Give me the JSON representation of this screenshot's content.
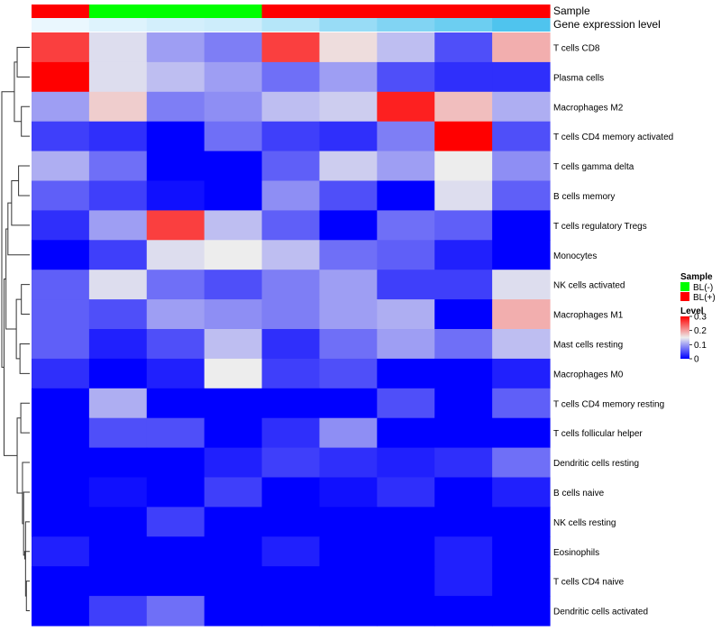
{
  "chart_data": {
    "type": "heatmap",
    "title": "",
    "annotation_labels": {
      "sample": "Sample",
      "expression": "Gene expression level"
    },
    "sample_groups": [
      "BL(+)",
      "BL(-)",
      "BL(-)",
      "BL(-)",
      "BL(+)",
      "BL(+)",
      "BL(+)",
      "BL(+)",
      "BL(+)"
    ],
    "expression_levels": [
      0.02,
      0.06,
      0.1,
      0.12,
      0.2,
      0.3,
      0.38,
      0.45,
      0.55
    ],
    "rows": [
      "T cells CD8",
      "Plasma cells",
      "Macrophages M2",
      "T cells CD4 memory activated",
      "T cells gamma delta",
      "B cells memory",
      "T cells regulatory  Tregs",
      "Monocytes",
      "NK cells activated",
      "Macrophages M1",
      "Mast cells resting",
      "Macrophages M0",
      "T cells CD4 memory resting",
      "T cells follicular helper",
      "Dendritic cells resting",
      "B cells naive",
      "NK cells resting",
      "Eosinophils",
      "T cells CD4 naive",
      "Dendritic cells activated"
    ],
    "values": [
      [
        0.26,
        0.14,
        0.1,
        0.08,
        0.26,
        0.16,
        0.12,
        0.05,
        0.19
      ],
      [
        0.3,
        0.14,
        0.12,
        0.1,
        0.07,
        0.1,
        0.05,
        0.03,
        0.03
      ],
      [
        0.1,
        0.17,
        0.08,
        0.09,
        0.12,
        0.13,
        0.28,
        0.18,
        0.11
      ],
      [
        0.04,
        0.03,
        0.0,
        0.07,
        0.04,
        0.03,
        0.08,
        0.3,
        0.05
      ],
      [
        0.11,
        0.07,
        0.0,
        0.0,
        0.06,
        0.13,
        0.1,
        0.15,
        0.09
      ],
      [
        0.06,
        0.04,
        0.01,
        0.0,
        0.09,
        0.05,
        0.0,
        0.14,
        0.06
      ],
      [
        0.03,
        0.1,
        0.26,
        0.12,
        0.06,
        0.0,
        0.07,
        0.06,
        0.0
      ],
      [
        0.0,
        0.04,
        0.14,
        0.15,
        0.12,
        0.07,
        0.06,
        0.02,
        0.0
      ],
      [
        0.06,
        0.14,
        0.07,
        0.05,
        0.08,
        0.1,
        0.04,
        0.04,
        0.14
      ],
      [
        0.06,
        0.05,
        0.1,
        0.09,
        0.08,
        0.1,
        0.11,
        0.0,
        0.19
      ],
      [
        0.06,
        0.02,
        0.05,
        0.12,
        0.03,
        0.07,
        0.1,
        0.07,
        0.12
      ],
      [
        0.03,
        0.0,
        0.02,
        0.15,
        0.04,
        0.05,
        0.0,
        0.0,
        0.02
      ],
      [
        0.0,
        0.11,
        0.0,
        0.0,
        0.0,
        0.0,
        0.05,
        0.0,
        0.06
      ],
      [
        0.0,
        0.05,
        0.05,
        0.0,
        0.03,
        0.09,
        0.0,
        0.0,
        0.0
      ],
      [
        0.0,
        0.0,
        0.0,
        0.02,
        0.04,
        0.03,
        0.02,
        0.03,
        0.07
      ],
      [
        0.0,
        0.01,
        0.0,
        0.04,
        0.0,
        0.01,
        0.03,
        0.0,
        0.02
      ],
      [
        0.0,
        0.0,
        0.04,
        0.0,
        0.0,
        0.0,
        0.0,
        0.0,
        0.0
      ],
      [
        0.02,
        0.0,
        0.0,
        0.0,
        0.02,
        0.0,
        0.0,
        0.02,
        0.0
      ],
      [
        0.0,
        0.0,
        0.0,
        0.0,
        0.0,
        0.0,
        0.0,
        0.02,
        0.0
      ],
      [
        0.0,
        0.04,
        0.07,
        0.0,
        0.0,
        0.0,
        0.0,
        0.0,
        0.0
      ]
    ],
    "value_range": [
      0,
      0.3
    ],
    "legend": {
      "placement": "right",
      "sample_title": "Sample",
      "sample_entries": [
        {
          "label": "BL(-)",
          "color": "#00ff00"
        },
        {
          "label": "BL(+)",
          "color": "#ff0000"
        }
      ],
      "level_title": "Level",
      "level_ticks": [
        "0.3",
        "0.2",
        "0.1",
        "0"
      ],
      "level_tick_values": [
        0.3,
        0.2,
        0.1,
        0
      ]
    },
    "colors": {
      "low": "#0000ff",
      "mid": "#ededed",
      "high": "#ff0000",
      "mid_value": 0.15,
      "bl_minus": "#00ff00",
      "bl_plus": "#ff0000",
      "expr_low": "#f0f9ff",
      "expr_high": "#4fc4ee",
      "dendrogram": "#333333"
    },
    "dendrogram": {
      "merges": [
        [
          -1,
          -2
        ],
        [
          -3,
          -4
        ],
        [
          -5,
          -6
        ],
        [
          1,
          2
        ],
        [
          3,
          -7
        ],
        [
          5,
          -8
        ],
        [
          -9,
          -10
        ],
        [
          -11,
          -12
        ],
        [
          7,
          8
        ],
        [
          6,
          9
        ],
        [
          -19,
          -20
        ],
        [
          -17,
          11
        ],
        [
          -18,
          12
        ],
        [
          -16,
          13
        ],
        [
          -15,
          14
        ],
        [
          -13,
          -14
        ],
        [
          16,
          15
        ],
        [
          10,
          17
        ],
        [
          4,
          18
        ]
      ],
      "heights": [
        0.45,
        0.3,
        0.4,
        0.55,
        0.65,
        0.78,
        0.3,
        0.35,
        0.48,
        0.85,
        0.12,
        0.15,
        0.18,
        0.22,
        0.26,
        0.32,
        0.45,
        0.92,
        1.0
      ]
    }
  }
}
